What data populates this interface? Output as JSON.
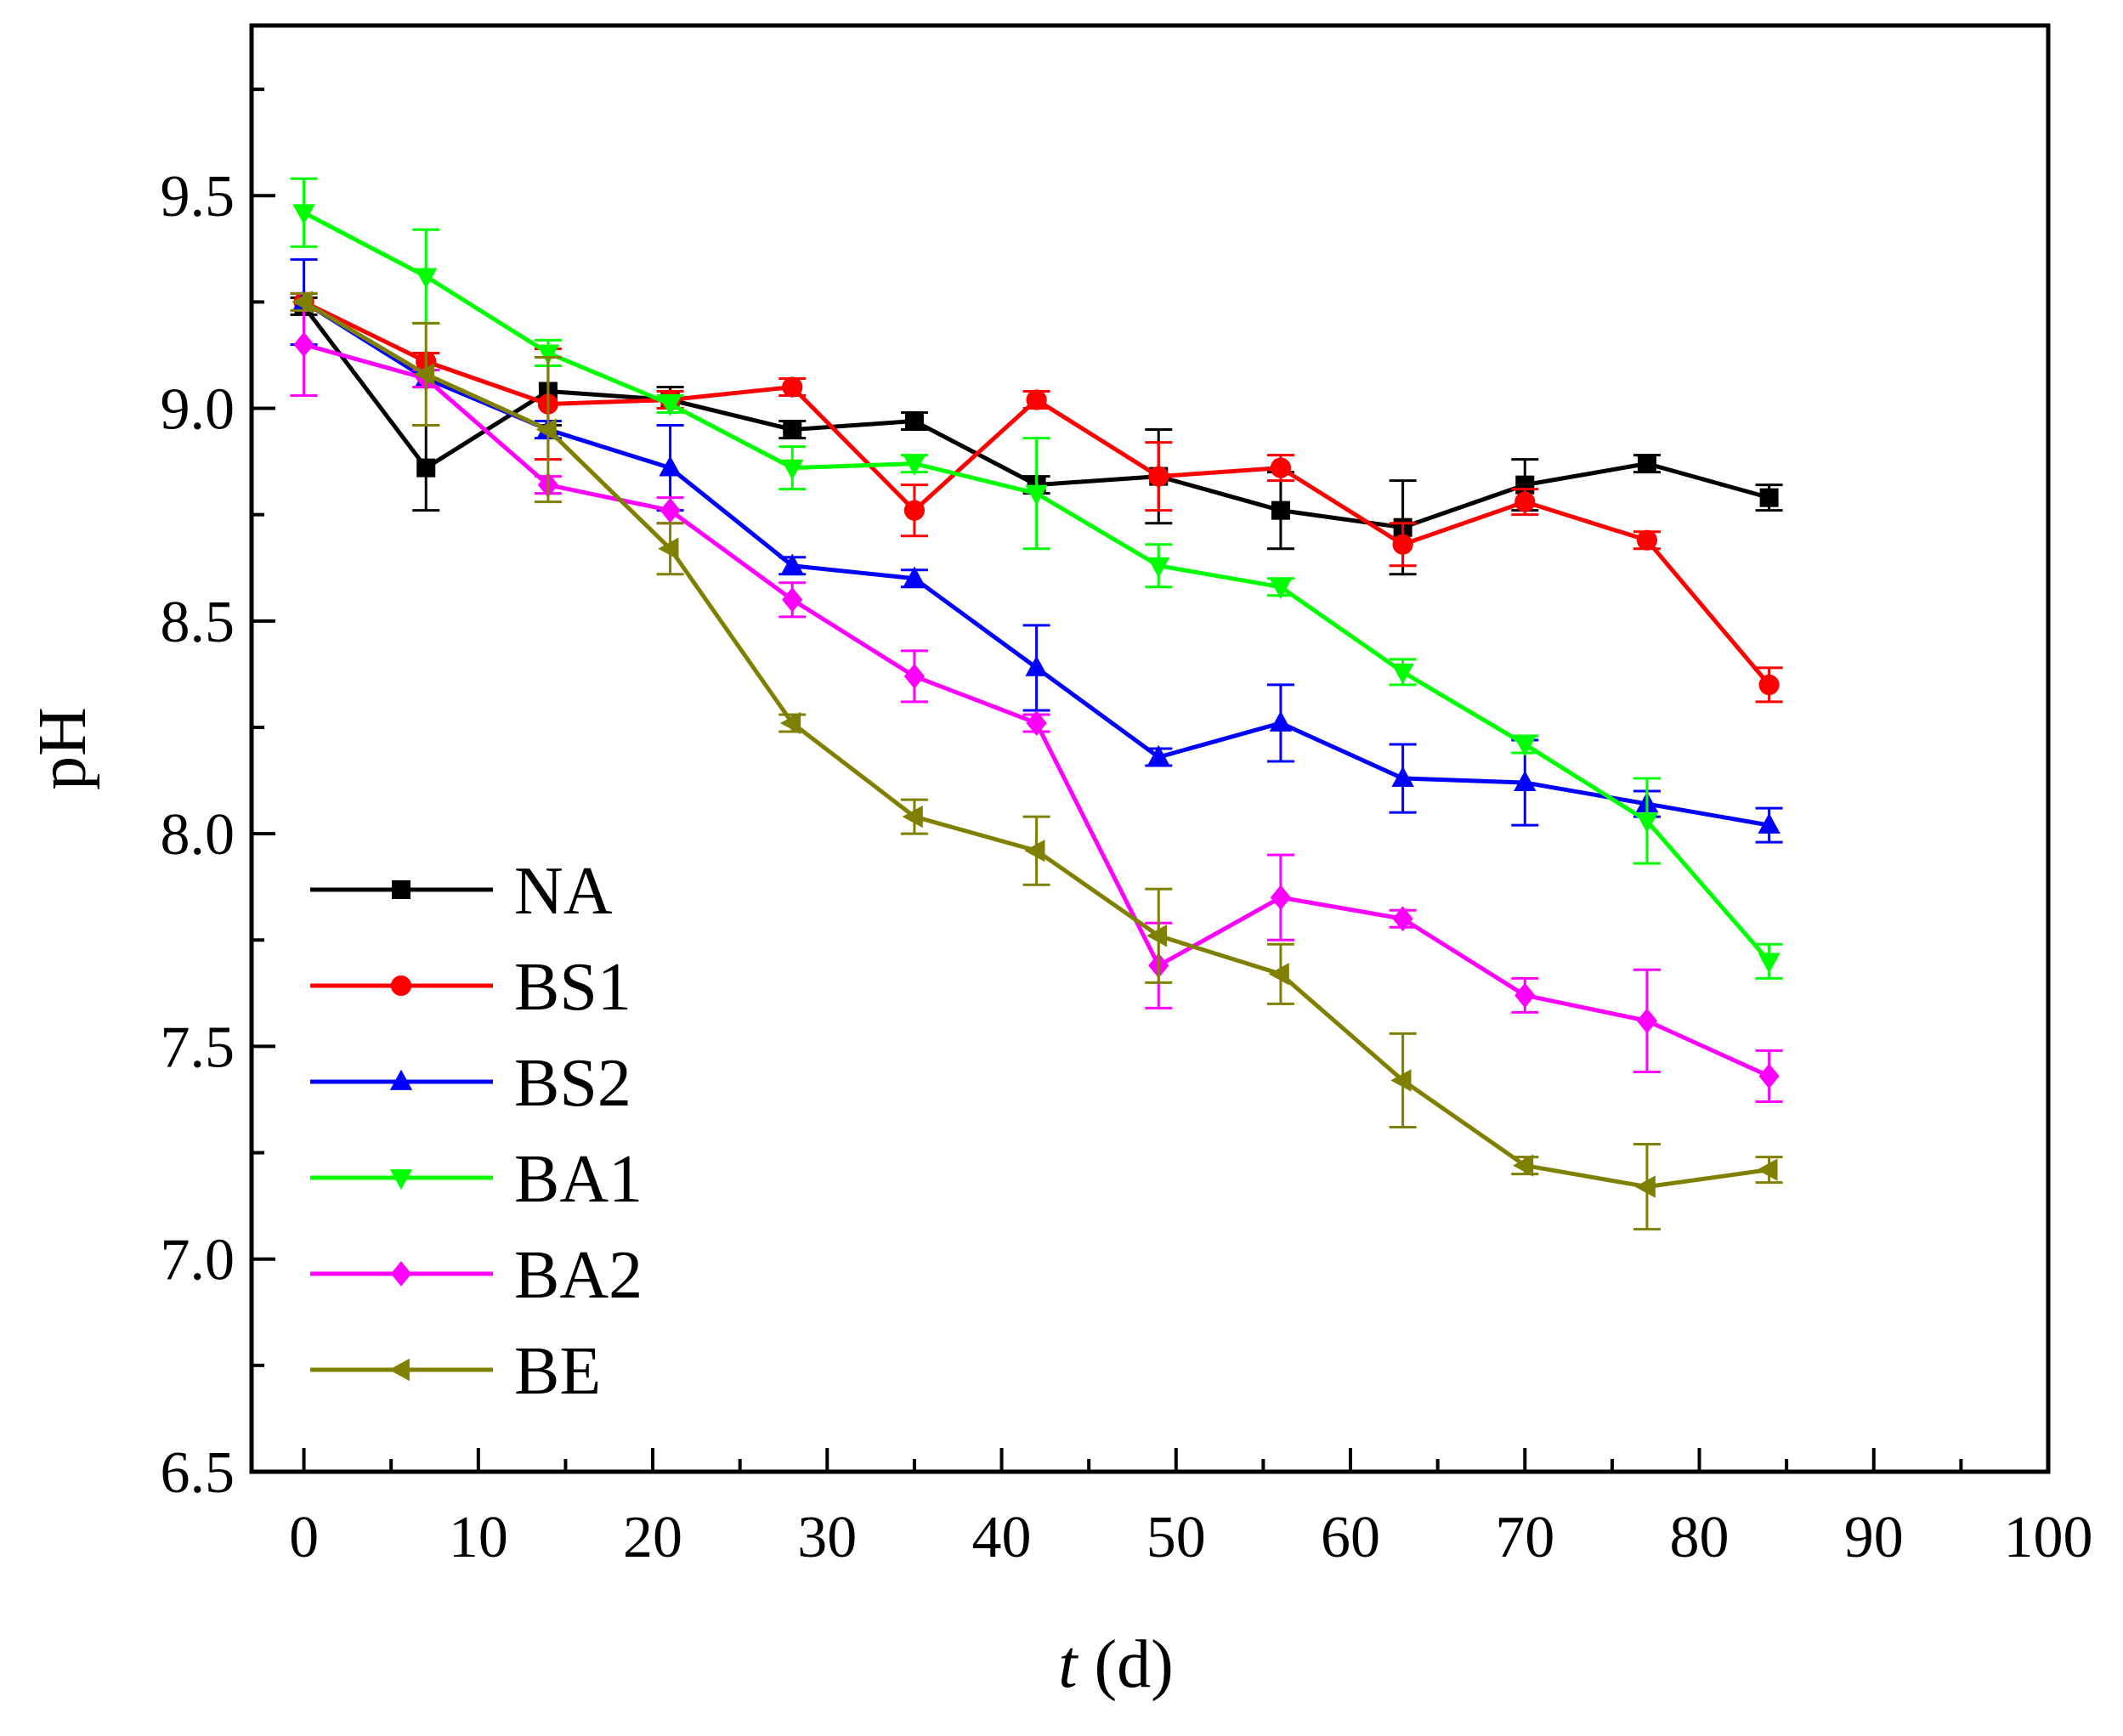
{
  "chart_data": {
    "type": "line",
    "title": "",
    "xlabel": "t (d)",
    "xlabel_italic": "t",
    "xlabel_rest": " (d)",
    "ylabel": "pH",
    "xlim": [
      -3,
      100
    ],
    "ylim": [
      6.5,
      9.9
    ],
    "xticks": [
      "0",
      "10",
      "20",
      "30",
      "40",
      "50",
      "60",
      "70",
      "80",
      "90",
      "100"
    ],
    "yticks": [
      "6.5",
      "7.0",
      "7.5",
      "8.0",
      "8.5",
      "9.0",
      "9.5"
    ],
    "x": [
      0,
      7,
      14,
      21,
      28,
      35,
      42,
      49,
      56,
      63,
      70,
      77,
      84
    ],
    "legend_position": "bottom-left",
    "series": [
      {
        "name": "NA",
        "color": "#000000",
        "marker": "square",
        "values": [
          9.24,
          8.86,
          9.04,
          9.02,
          8.95,
          8.97,
          8.82,
          8.84,
          8.76,
          8.72,
          8.82,
          8.87,
          8.79
        ],
        "errors": [
          0.02,
          0.1,
          0.08,
          0.03,
          0.02,
          0.02,
          0.02,
          0.11,
          0.09,
          0.11,
          0.06,
          0.02,
          0.03
        ]
      },
      {
        "name": "BS1",
        "color": "#ff0000",
        "marker": "circle",
        "values": [
          9.25,
          9.11,
          9.01,
          9.02,
          9.05,
          8.76,
          9.02,
          8.84,
          8.86,
          8.68,
          8.78,
          8.69,
          8.35
        ],
        "errors": [
          0.02,
          0.02,
          0.13,
          0.02,
          0.02,
          0.06,
          0.02,
          0.08,
          0.03,
          0.05,
          0.03,
          0.02,
          0.04
        ]
      },
      {
        "name": "BS2",
        "color": "#0000ff",
        "marker": "triangle-up",
        "values": [
          9.25,
          9.07,
          8.95,
          8.86,
          8.63,
          8.6,
          8.39,
          8.18,
          8.26,
          8.13,
          8.12,
          8.07,
          8.02
        ],
        "errors": [
          0.1,
          0.02,
          0.02,
          0.1,
          0.02,
          0.02,
          0.1,
          0.02,
          0.09,
          0.08,
          0.1,
          0.03,
          0.04
        ]
      },
      {
        "name": "BA1",
        "color": "#00ff00",
        "marker": "triangle-down",
        "values": [
          9.46,
          9.31,
          9.13,
          9.01,
          8.86,
          8.87,
          8.8,
          8.63,
          8.58,
          8.38,
          8.21,
          8.03,
          7.7
        ],
        "errors": [
          0.08,
          0.11,
          0.03,
          0.02,
          0.05,
          0.02,
          0.13,
          0.05,
          0.02,
          0.03,
          0.02,
          0.1,
          0.04
        ]
      },
      {
        "name": "BA2",
        "color": "#ff00ff",
        "marker": "diamond",
        "values": [
          9.15,
          9.07,
          8.82,
          8.76,
          8.55,
          8.37,
          8.26,
          7.69,
          7.85,
          7.8,
          7.62,
          7.56,
          7.43
        ],
        "errors": [
          0.12,
          0.02,
          0.02,
          0.03,
          0.04,
          0.06,
          0.02,
          0.1,
          0.1,
          0.02,
          0.04,
          0.12,
          0.06
        ]
      },
      {
        "name": "BE",
        "color": "#808000",
        "marker": "triangle-left",
        "values": [
          9.25,
          9.08,
          8.95,
          8.67,
          8.26,
          8.04,
          7.96,
          7.76,
          7.67,
          7.42,
          7.22,
          7.17,
          7.21
        ],
        "errors": [
          0.02,
          0.12,
          0.17,
          0.06,
          0.02,
          0.04,
          0.08,
          0.11,
          0.07,
          0.11,
          0.02,
          0.1,
          0.03
        ]
      }
    ]
  }
}
